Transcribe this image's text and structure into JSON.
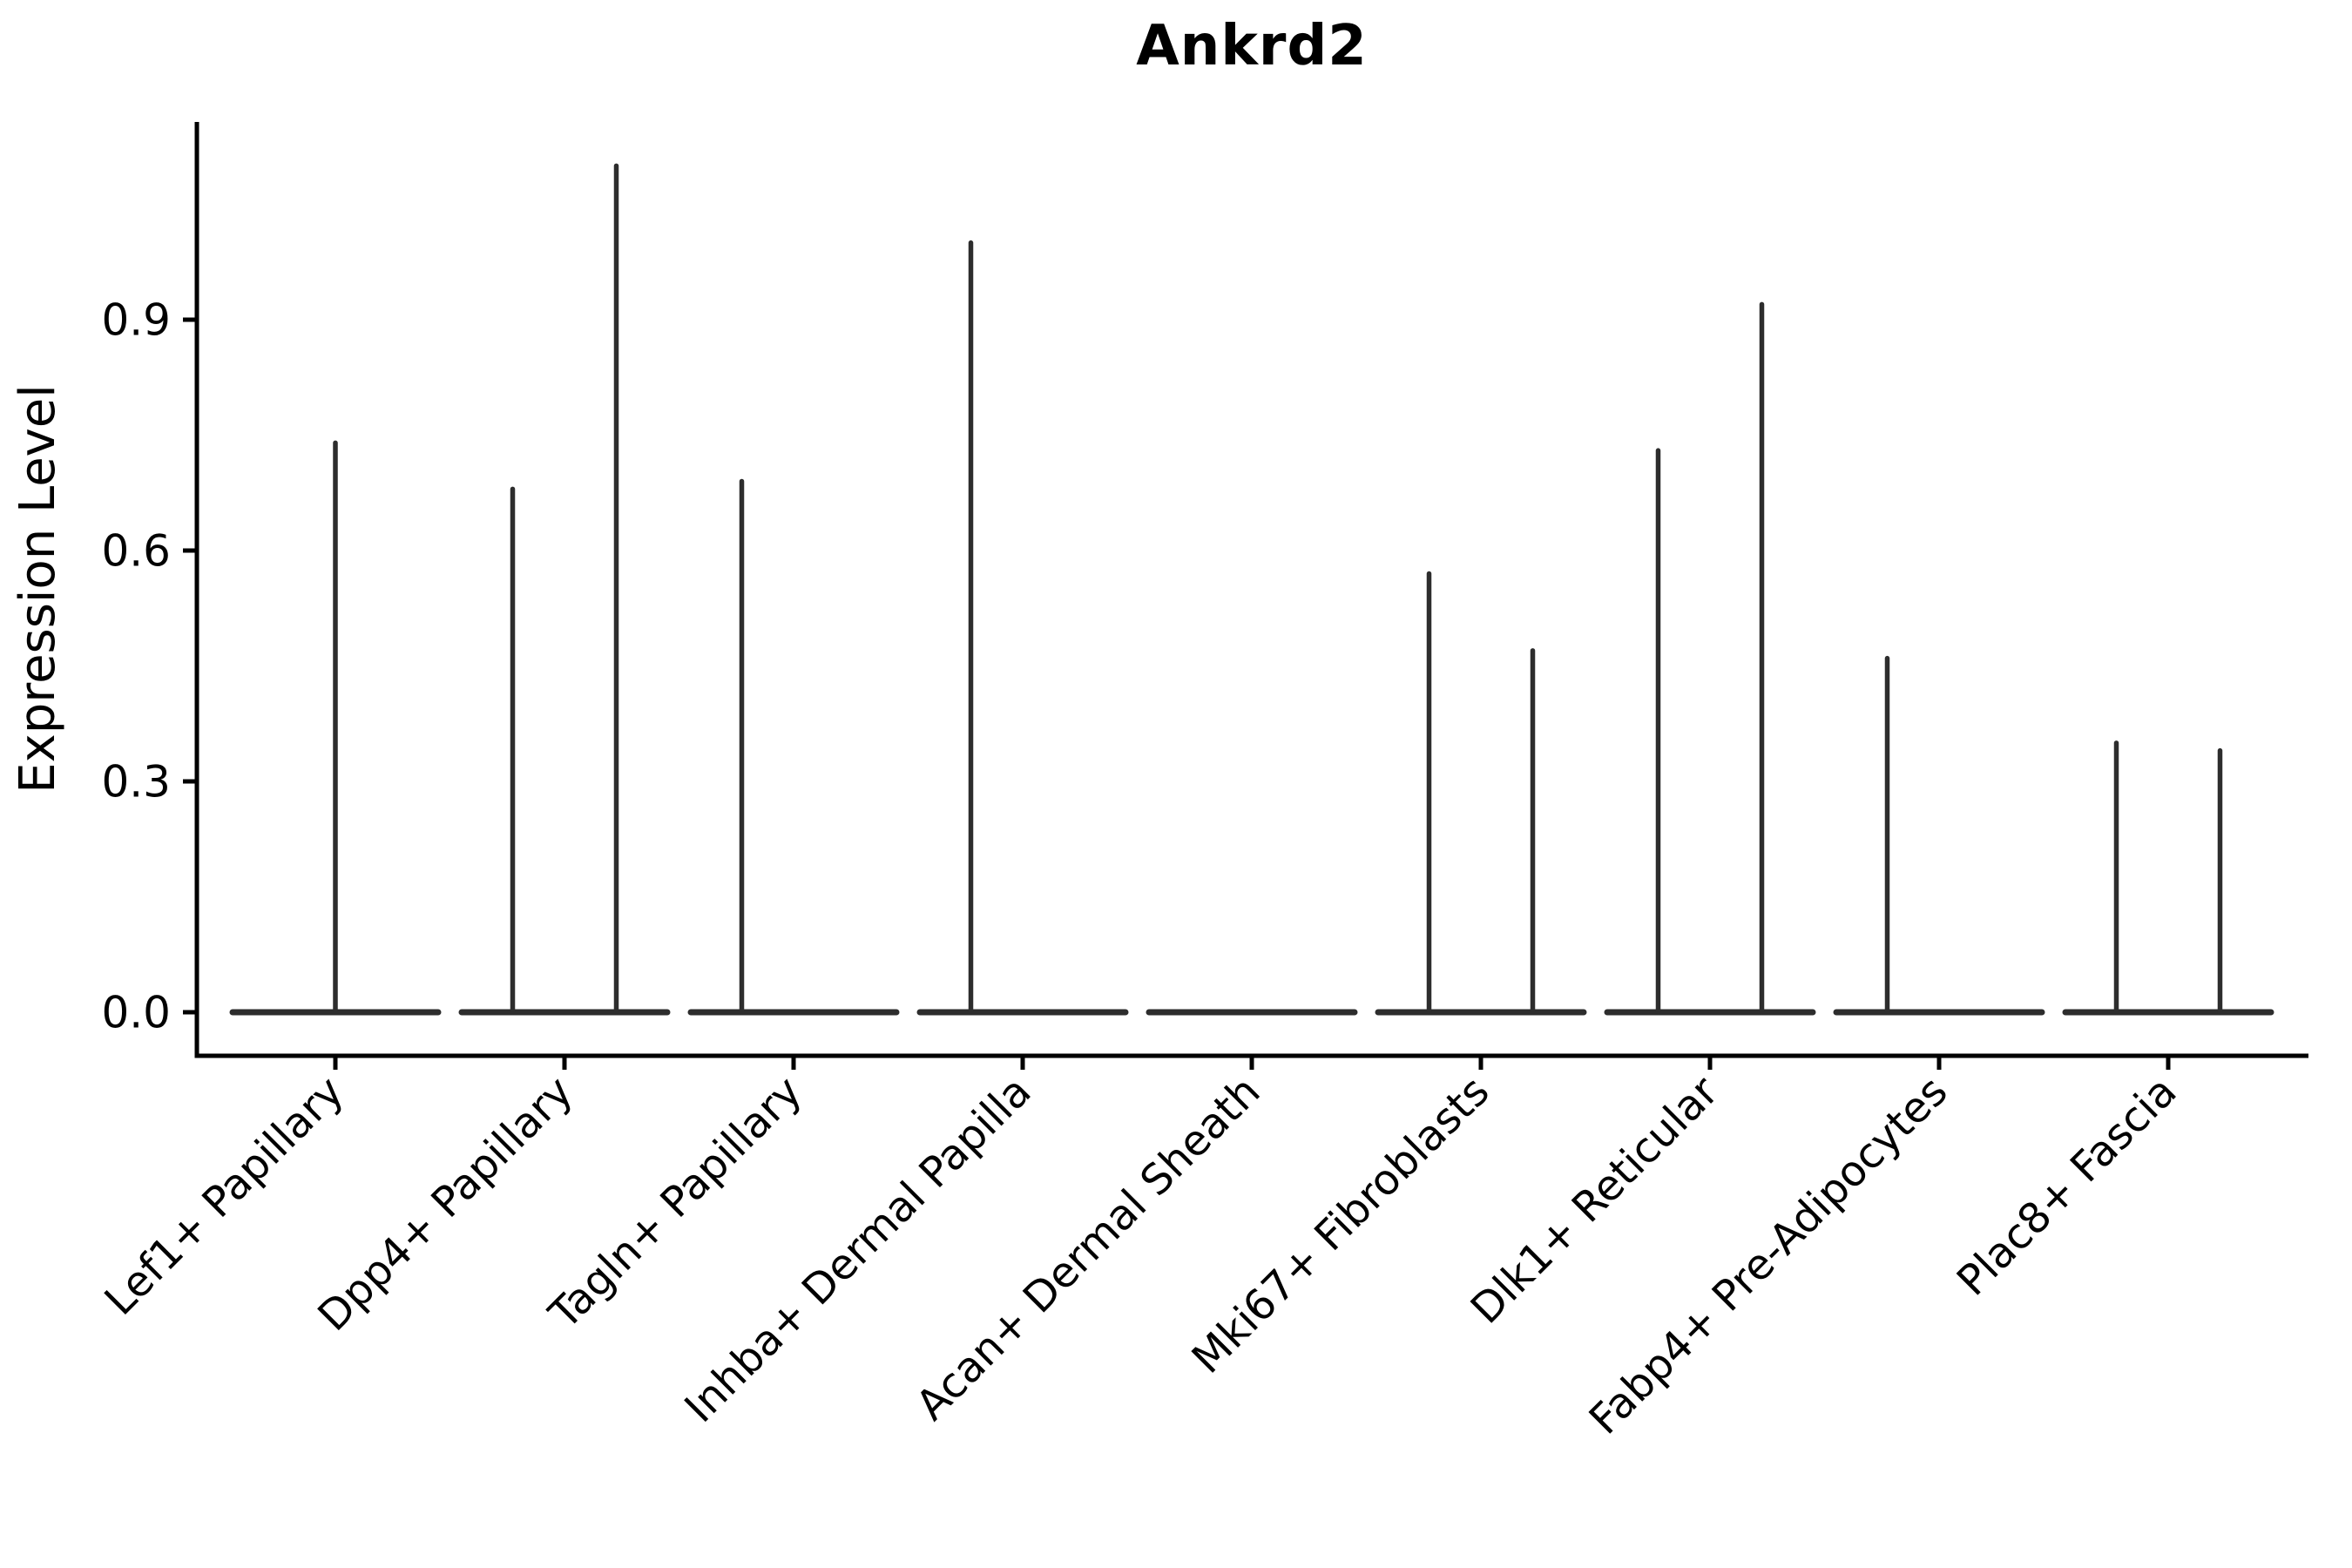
{
  "chart_data": {
    "type": "violin",
    "title": "Ankrd2",
    "xlabel": "",
    "ylabel": "Expression Level",
    "ylim": [
      -0.05,
      1.16
    ],
    "grid": false,
    "legend": "none",
    "x_tick_rotation_deg": 45,
    "yticks": [
      {
        "value": 0.0,
        "label": "0.0"
      },
      {
        "value": 0.3,
        "label": "0.3"
      },
      {
        "value": 0.6,
        "label": "0.6"
      },
      {
        "value": 0.9,
        "label": "0.9"
      }
    ],
    "line_color": "#2d2d2d",
    "axis_color": "#000000",
    "categories": [
      {
        "label": "Lef1+ Papillary",
        "violins": [
          {
            "position": "center",
            "max": 0.74
          }
        ]
      },
      {
        "label": "Dpp4+ Papillary",
        "violins": [
          {
            "position": "left",
            "max": 0.68
          },
          {
            "position": "right",
            "max": 1.1
          }
        ]
      },
      {
        "label": "Tagln+ Papillary",
        "violins": [
          {
            "position": "left",
            "max": 0.69
          },
          {
            "position": "right",
            "max": 0.0
          }
        ]
      },
      {
        "label": "Inhba+ Dermal Papilla",
        "violins": [
          {
            "position": "left",
            "max": 1.0
          },
          {
            "position": "right",
            "max": 0.0
          }
        ]
      },
      {
        "label": "Acan+ Dermal Sheath",
        "violins": [
          {
            "position": "left",
            "max": 0.0
          },
          {
            "position": "right",
            "max": 0.0
          }
        ]
      },
      {
        "label": "Mki67+ Fibroblasts",
        "violins": [
          {
            "position": "left",
            "max": 0.57
          },
          {
            "position": "right",
            "max": 0.47
          }
        ]
      },
      {
        "label": "Dlk1+ Reticular",
        "violins": [
          {
            "position": "left",
            "max": 0.73
          },
          {
            "position": "right",
            "max": 0.92
          }
        ]
      },
      {
        "label": "Fabp4+ Pre-Adipocytes",
        "violins": [
          {
            "position": "left",
            "max": 0.46
          },
          {
            "position": "right",
            "max": 0.0
          }
        ]
      },
      {
        "label": "Plac8+ Fascia",
        "violins": [
          {
            "position": "left",
            "max": 0.35
          },
          {
            "position": "right",
            "max": 0.34
          }
        ]
      }
    ]
  }
}
